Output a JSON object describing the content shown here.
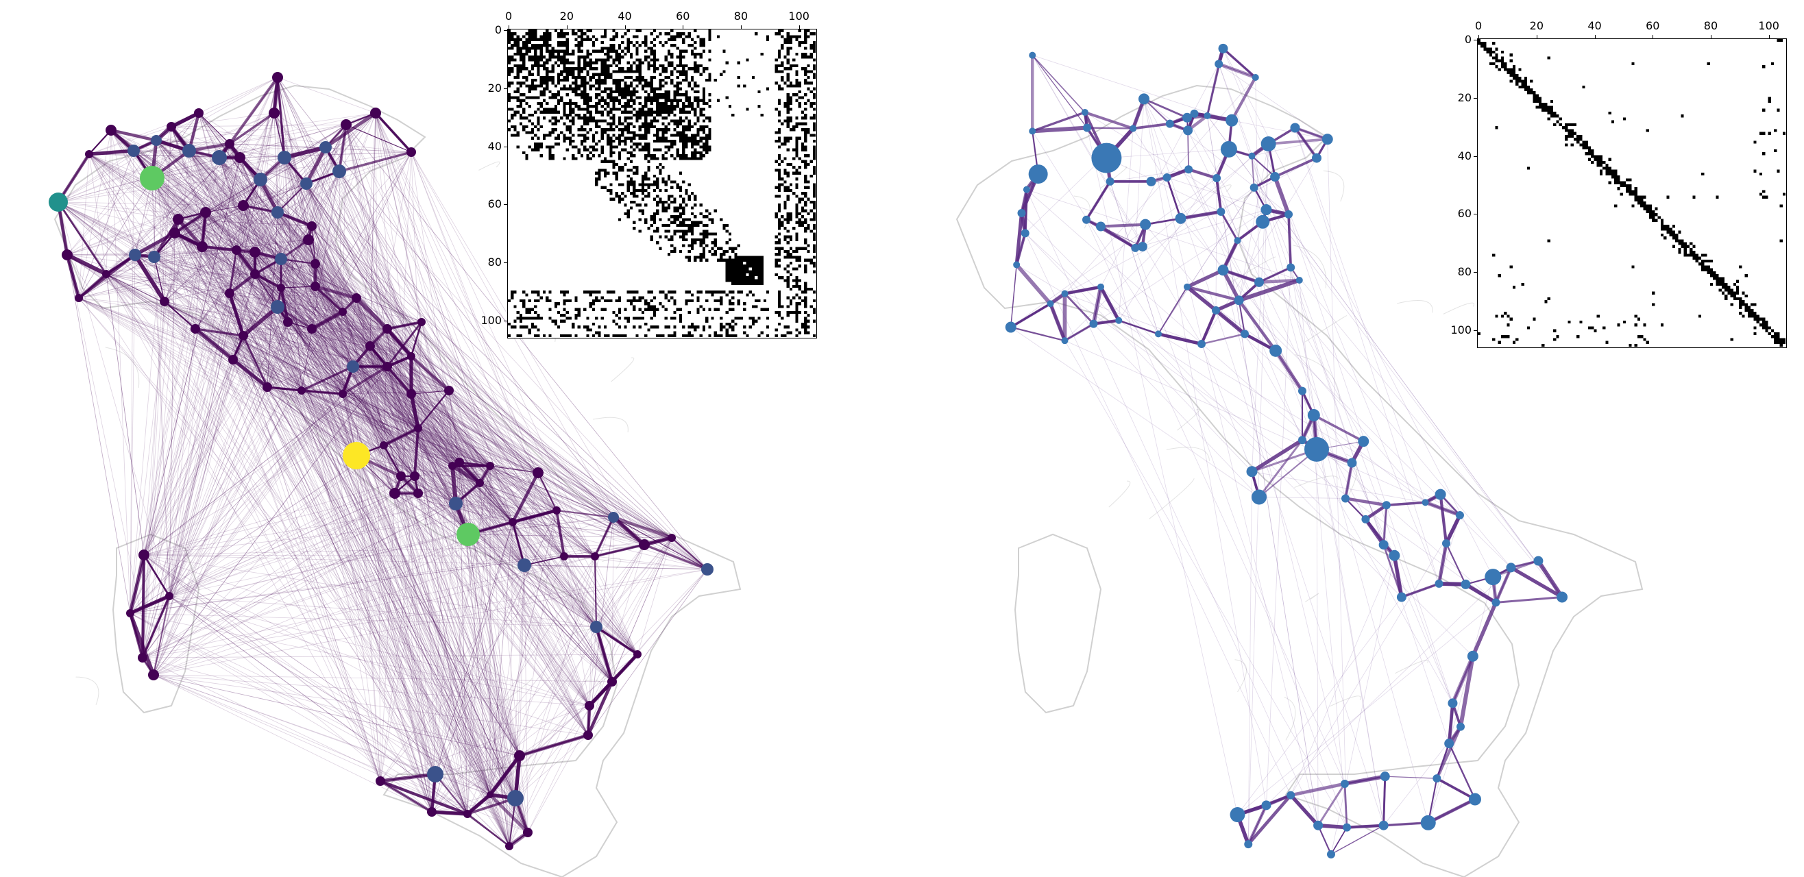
{
  "figure": {
    "left_panel": {
      "node_color_scale": [
        "#440154",
        "#3b528b",
        "#21918c",
        "#5ec962",
        "#fde725"
      ],
      "edge_color": "#440154",
      "map_outline_color": "#c8c8c8",
      "inset_spy": {
        "axis_ticks": [
          "0",
          "20",
          "40",
          "60",
          "80",
          "100"
        ],
        "matrix_size": 106,
        "pattern": "dense"
      }
    },
    "right_panel": {
      "node_color": "#3a78b5",
      "edge_color": "#5b2c83",
      "map_outline_color": "#c8c8c8",
      "inset_spy": {
        "axis_ticks": [
          "0",
          "20",
          "40",
          "60",
          "80",
          "100"
        ],
        "matrix_size": 106,
        "pattern": "banded-sparse"
      }
    }
  }
}
